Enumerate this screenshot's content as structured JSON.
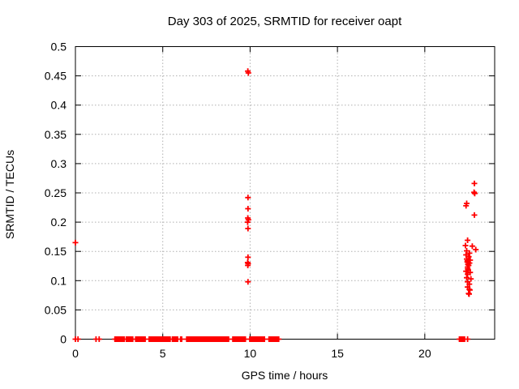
{
  "page": {
    "background": "#ffffff"
  },
  "chart_data": {
    "type": "scatter",
    "title": "Day 303 of 2025, SRMTID for receiver oapt",
    "xlabel": "GPS time / hours",
    "ylabel": "SRMTID / TECUs",
    "xlim": [
      0,
      24
    ],
    "ylim": [
      0,
      0.5
    ],
    "xtick_values": [
      0,
      5,
      10,
      15,
      20
    ],
    "xtick_labels": [
      "0",
      "5",
      "10",
      "15",
      "20"
    ],
    "ytick_values": [
      0,
      0.05,
      0.1,
      0.15,
      0.2,
      0.25,
      0.3,
      0.35,
      0.4,
      0.45,
      0.5
    ],
    "ytick_labels": [
      "0",
      "0.05",
      "0.1",
      "0.15",
      "0.2",
      "0.25",
      "0.3",
      "0.35",
      "0.4",
      "0.45",
      "0.5"
    ],
    "grid": true,
    "grid_color": "#b0b0b0",
    "legend": "none",
    "marker": {
      "shape": "plus",
      "color": "#ff0000",
      "size": 7,
      "stroke_width": 1.8
    },
    "series": [
      {
        "name": "SRMTID",
        "points": [
          [
            0.0,
            0.165
          ],
          [
            9.87,
            0.458
          ],
          [
            9.9,
            0.455
          ],
          [
            9.88,
            0.242
          ],
          [
            9.88,
            0.223
          ],
          [
            9.87,
            0.207
          ],
          [
            9.9,
            0.204
          ],
          [
            9.86,
            0.2
          ],
          [
            9.88,
            0.189
          ],
          [
            9.88,
            0.14
          ],
          [
            9.86,
            0.131
          ],
          [
            9.89,
            0.129
          ],
          [
            9.87,
            0.126
          ],
          [
            9.88,
            0.098
          ],
          [
            22.84,
            0.266
          ],
          [
            22.82,
            0.251
          ],
          [
            22.86,
            0.249
          ],
          [
            22.4,
            0.232
          ],
          [
            22.36,
            0.228
          ],
          [
            22.84,
            0.212
          ],
          [
            22.45,
            0.169
          ],
          [
            22.33,
            0.16
          ],
          [
            22.72,
            0.159
          ],
          [
            22.92,
            0.153
          ],
          [
            22.4,
            0.151
          ],
          [
            22.56,
            0.147
          ],
          [
            22.36,
            0.144
          ],
          [
            22.52,
            0.141
          ],
          [
            22.4,
            0.137
          ],
          [
            22.6,
            0.135
          ],
          [
            22.43,
            0.132
          ],
          [
            22.44,
            0.134
          ],
          [
            22.56,
            0.13
          ],
          [
            22.48,
            0.131
          ],
          [
            22.47,
            0.128
          ],
          [
            22.51,
            0.126
          ],
          [
            22.45,
            0.123
          ],
          [
            22.46,
            0.12
          ],
          [
            22.49,
            0.118
          ],
          [
            22.36,
            0.116
          ],
          [
            22.6,
            0.114
          ],
          [
            22.45,
            0.111
          ],
          [
            22.4,
            0.105
          ],
          [
            22.64,
            0.103
          ],
          [
            22.45,
            0.098
          ],
          [
            22.55,
            0.094
          ],
          [
            22.45,
            0.089
          ],
          [
            22.55,
            0.085
          ],
          [
            22.58,
            0.084
          ],
          [
            22.51,
            0.078
          ],
          [
            22.54,
            0.077
          ]
        ],
        "zero_value_singles": [
          0.0,
          0.15,
          1.18,
          1.36,
          22.45
        ],
        "zero_value_segments": [
          [
            2.26,
            2.8
          ],
          [
            2.92,
            3.3
          ],
          [
            3.45,
            4.02
          ],
          [
            4.22,
            5.42
          ],
          [
            5.55,
            5.9
          ],
          [
            6.02,
            6.13
          ],
          [
            6.37,
            8.78
          ],
          [
            9.01,
            9.78
          ],
          [
            9.98,
            10.87
          ],
          [
            11.08,
            11.48
          ],
          [
            11.52,
            11.64
          ],
          [
            21.98,
            22.3
          ]
        ],
        "zero_fill_step_hours": 0.06
      }
    ]
  }
}
